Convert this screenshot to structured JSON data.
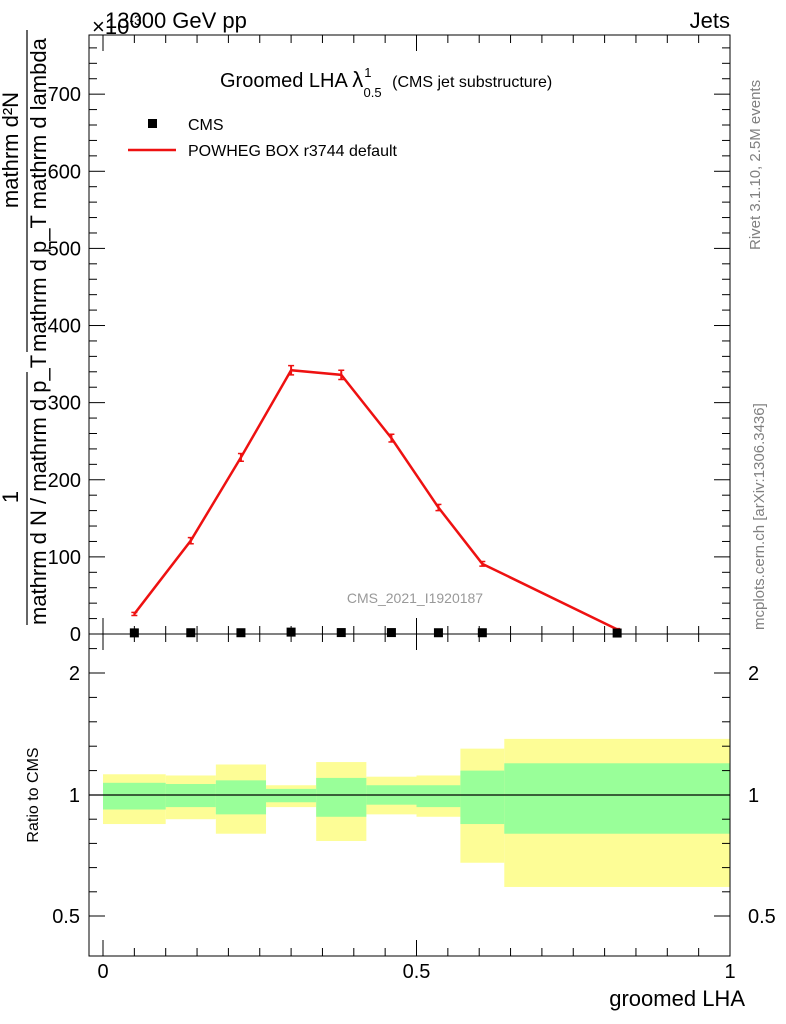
{
  "header": {
    "left": "13000 GeV pp",
    "right": "Jets",
    "exponent": "×10",
    "exponent_power": "-3"
  },
  "side_labels": {
    "rivet": "Rivet 3.1.10,  2.5M events",
    "mcplots": "mcplots.cern.ch [arXiv:1306.3436]"
  },
  "chart_data": [
    {
      "type": "line",
      "title_main": "Groomed LHA",
      "title_symbol": "λ",
      "title_sup": "1",
      "title_sub": "0.5",
      "title_suffix": "(CMS jet substructure)",
      "watermark": "CMS_2021_I1920187",
      "ylabel_numerator": "mathrm d²N",
      "ylabel_denominator": "mathrm d p_T mathrm d lambda",
      "ylabel_prefix_num": "1",
      "ylabel_prefix_den": "mathrm d N / mathrm d p_T",
      "xlim": [
        0,
        1
      ],
      "ylim": [
        0,
        780
      ],
      "yticks": [
        0,
        100,
        200,
        300,
        400,
        500,
        600,
        700
      ],
      "ytick_labels": [
        "0",
        "100",
        "200",
        "300",
        "400",
        "500",
        "600",
        "700"
      ],
      "legend": [
        {
          "name": "CMS",
          "marker": "square",
          "color": "#000000"
        },
        {
          "name": "POWHEG BOX r3744 default",
          "marker": "line",
          "color": "#ee1111"
        }
      ],
      "series": [
        {
          "name": "CMS",
          "x": [
            0.05,
            0.14,
            0.22,
            0.3,
            0.38,
            0.46,
            0.535,
            0.605,
            0.82
          ],
          "values": [
            0.8,
            1.0,
            1.0,
            1.8,
            1.2,
            1.2,
            1.0,
            1.0,
            0.6
          ]
        },
        {
          "name": "POWHEG BOX r3744 default",
          "x": [
            0.05,
            0.14,
            0.22,
            0.3,
            0.38,
            0.46,
            0.535,
            0.605,
            0.82
          ],
          "values": [
            26,
            121,
            229,
            342,
            336,
            254,
            164,
            91,
            6
          ],
          "errors": [
            2,
            4,
            5,
            6,
            6,
            5,
            4,
            3,
            1
          ]
        }
      ]
    },
    {
      "type": "area",
      "ylabel": "Ratio to CMS",
      "xlabel": "groomed LHA",
      "xlim": [
        0,
        1
      ],
      "ylim": [
        0.35,
        2.3
      ],
      "xticks": [
        0,
        0.5,
        1
      ],
      "xtick_labels": [
        "0",
        "0.5",
        "1"
      ],
      "yticks": [
        0.5,
        1,
        2
      ],
      "ytick_labels": [
        "0.5",
        "1",
        "2"
      ],
      "bins": [
        {
          "lo": 0.0,
          "hi": 0.1,
          "yellow": [
            0.88,
            1.17
          ],
          "green": [
            0.94,
            1.1
          ]
        },
        {
          "lo": 0.1,
          "hi": 0.18,
          "yellow": [
            0.9,
            1.16
          ],
          "green": [
            0.95,
            1.09
          ]
        },
        {
          "lo": 0.18,
          "hi": 0.26,
          "yellow": [
            0.84,
            1.25
          ],
          "green": [
            0.92,
            1.12
          ]
        },
        {
          "lo": 0.26,
          "hi": 0.34,
          "yellow": [
            0.95,
            1.08
          ],
          "green": [
            0.97,
            1.05
          ]
        },
        {
          "lo": 0.34,
          "hi": 0.42,
          "yellow": [
            0.81,
            1.27
          ],
          "green": [
            0.91,
            1.14
          ]
        },
        {
          "lo": 0.42,
          "hi": 0.5,
          "yellow": [
            0.92,
            1.15
          ],
          "green": [
            0.96,
            1.08
          ]
        },
        {
          "lo": 0.5,
          "hi": 0.57,
          "yellow": [
            0.91,
            1.16
          ],
          "green": [
            0.95,
            1.08
          ]
        },
        {
          "lo": 0.57,
          "hi": 0.64,
          "yellow": [
            0.72,
            1.38
          ],
          "green": [
            0.88,
            1.2
          ]
        },
        {
          "lo": 0.64,
          "hi": 1.0,
          "yellow": [
            0.62,
            1.46
          ],
          "green": [
            0.84,
            1.26
          ]
        }
      ],
      "reference_line": 1
    }
  ]
}
